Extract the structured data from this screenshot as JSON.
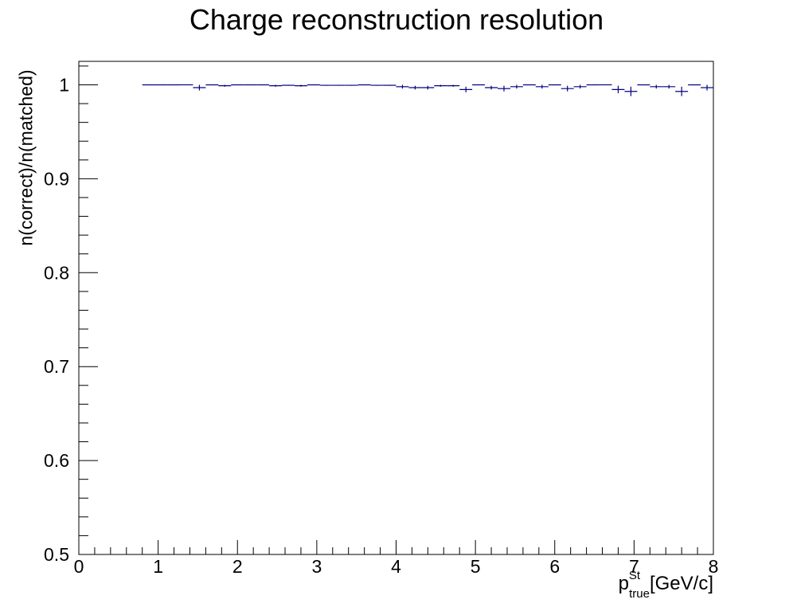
{
  "chart_data": {
    "type": "scatter",
    "title": "Charge reconstruction resolution",
    "ylabel": "n(correct)/n(matched)",
    "xlabel": {
      "base": "p",
      "superscript": "St",
      "subscript": "true",
      "unit": "[GeV/c]"
    },
    "xlim": [
      0,
      8
    ],
    "ylim": [
      0.5,
      1.025
    ],
    "x_ticks": [
      "0",
      "1",
      "2",
      "3",
      "4",
      "5",
      "6",
      "7",
      "8"
    ],
    "y_ticks": [
      "0.5",
      "0.6",
      "0.7",
      "0.8",
      "0.9",
      "1"
    ],
    "bin_width": 0.16,
    "series": [
      {
        "color": "#000080",
        "x": [
          0.88,
          1.04,
          1.2,
          1.36,
          1.52,
          1.68,
          1.84,
          2.0,
          2.16,
          2.32,
          2.48,
          2.64,
          2.8,
          2.96,
          3.12,
          3.28,
          3.44,
          3.6,
          3.76,
          3.92,
          4.08,
          4.24,
          4.4,
          4.56,
          4.72,
          4.88,
          5.04,
          5.2,
          5.36,
          5.52,
          5.68,
          5.84,
          6.0,
          6.16,
          6.32,
          6.48,
          6.64,
          6.8,
          6.96,
          7.12,
          7.28,
          7.44,
          7.6,
          7.76,
          7.92
        ],
        "y": [
          1.0,
          1.0,
          1.0,
          1.0,
          0.997,
          1.0,
          0.999,
          1.0,
          1.0,
          1.0,
          0.999,
          0.9995,
          0.999,
          1.0,
          0.9995,
          0.9995,
          0.9995,
          1.0,
          0.9995,
          0.9995,
          0.998,
          0.997,
          0.997,
          0.999,
          0.999,
          0.995,
          1.0,
          0.997,
          0.996,
          0.998,
          1.0,
          0.998,
          1.0,
          0.996,
          0.998,
          1.0,
          1.0,
          0.995,
          0.993,
          1.0,
          0.998,
          0.998,
          0.993,
          1.0,
          0.997
        ],
        "yerr": [
          0,
          0,
          0,
          0,
          0.003,
          0,
          0.001,
          0,
          0,
          0,
          0.001,
          0.0005,
          0.001,
          0,
          0.0005,
          0.0005,
          0.0005,
          0,
          0.0005,
          0.0005,
          0.002,
          0.002,
          0.002,
          0.001,
          0.001,
          0.003,
          0,
          0.002,
          0.003,
          0.002,
          0,
          0.002,
          0,
          0.003,
          0.002,
          0,
          0,
          0.004,
          0.005,
          0,
          0.002,
          0.002,
          0.005,
          0,
          0.003
        ]
      }
    ]
  }
}
